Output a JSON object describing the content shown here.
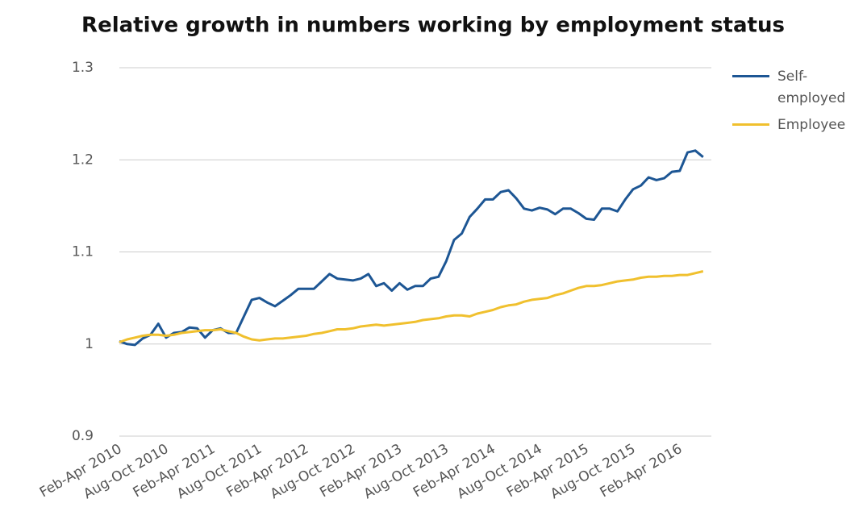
{
  "chart_data": {
    "type": "line",
    "title": "Relative growth in numbers working by employment status",
    "categories": [
      "Feb-Apr 2010",
      null,
      null,
      null,
      null,
      null,
      "Aug-Oct 2010",
      null,
      null,
      null,
      null,
      null,
      "Feb-Apr 2011",
      null,
      null,
      null,
      null,
      null,
      "Aug-Oct 2011",
      null,
      null,
      null,
      null,
      null,
      "Feb-Apr 2012",
      null,
      null,
      null,
      null,
      null,
      "Aug-Oct 2012",
      null,
      null,
      null,
      null,
      null,
      "Feb-Apr 2013",
      null,
      null,
      null,
      null,
      null,
      "Aug-Oct 2013",
      null,
      null,
      null,
      null,
      null,
      "Feb-Apr 2014",
      null,
      null,
      null,
      null,
      null,
      "Aug-Oct 2014",
      null,
      null,
      null,
      null,
      null,
      "Feb-Apr 2015",
      null,
      null,
      null,
      null,
      null,
      "Aug-Oct 2015",
      null,
      null,
      null,
      null,
      null,
      "Feb-Apr 2016",
      null,
      null,
      null
    ],
    "series": [
      {
        "name": "Self-employed",
        "color": "#1d5694",
        "values": [
          1.003,
          1.0,
          0.999,
          1.006,
          1.01,
          1.022,
          1.007,
          1.012,
          1.013,
          1.018,
          1.017,
          1.007,
          1.015,
          1.017,
          1.012,
          1.012,
          1.03,
          1.048,
          1.05,
          1.045,
          1.041,
          1.047,
          1.053,
          1.06,
          1.06,
          1.06,
          1.068,
          1.076,
          1.071,
          1.07,
          1.069,
          1.071,
          1.076,
          1.063,
          1.066,
          1.058,
          1.066,
          1.059,
          1.063,
          1.063,
          1.071,
          1.073,
          1.09,
          1.113,
          1.12,
          1.138,
          1.147,
          1.157,
          1.157,
          1.165,
          1.167,
          1.158,
          1.147,
          1.145,
          1.148,
          1.146,
          1.141,
          1.147,
          1.147,
          1.142,
          1.136,
          1.135,
          1.147,
          1.147,
          1.144,
          1.157,
          1.168,
          1.172,
          1.181,
          1.178,
          1.18,
          1.187,
          1.188,
          1.208,
          1.21,
          1.203
        ]
      },
      {
        "name": "Employee",
        "color": "#f0c02e",
        "values": [
          1.002,
          1.005,
          1.007,
          1.009,
          1.01,
          1.01,
          1.009,
          1.01,
          1.012,
          1.013,
          1.014,
          1.015,
          1.015,
          1.016,
          1.014,
          1.012,
          1.008,
          1.005,
          1.004,
          1.005,
          1.006,
          1.006,
          1.007,
          1.008,
          1.009,
          1.011,
          1.012,
          1.014,
          1.016,
          1.016,
          1.017,
          1.019,
          1.02,
          1.021,
          1.02,
          1.021,
          1.022,
          1.023,
          1.024,
          1.026,
          1.027,
          1.028,
          1.03,
          1.031,
          1.031,
          1.03,
          1.033,
          1.035,
          1.037,
          1.04,
          1.042,
          1.043,
          1.046,
          1.048,
          1.049,
          1.05,
          1.053,
          1.055,
          1.058,
          1.061,
          1.063,
          1.063,
          1.064,
          1.066,
          1.068,
          1.069,
          1.07,
          1.072,
          1.073,
          1.073,
          1.074,
          1.074,
          1.075,
          1.075,
          1.077,
          1.079
        ]
      }
    ],
    "ylim": [
      0.9,
      1.3
    ],
    "yticks": [
      0.9,
      1,
      1.1,
      1.2,
      1.3
    ],
    "grid": true,
    "legend": "right"
  }
}
